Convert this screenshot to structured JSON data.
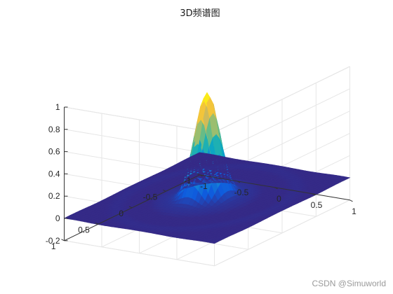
{
  "chart_data": {
    "type": "surface",
    "title": "3D频谱图",
    "xlabel": "",
    "ylabel": "",
    "zlabel": "",
    "xlim": [
      -1,
      1
    ],
    "ylim": [
      -1,
      1
    ],
    "zlim": [
      -0.2,
      1
    ],
    "x_ticks": [
      "-1",
      "-0.5",
      "0",
      "0.5",
      "1"
    ],
    "y_ticks": [
      "-1",
      "-0.5",
      "0",
      "0.5",
      "1"
    ],
    "z_ticks": [
      "-0.2",
      "0",
      "0.2",
      "0.4",
      "0.6",
      "0.8",
      "1"
    ],
    "x_tick_values": [
      -1,
      -0.5,
      0,
      0.5,
      1
    ],
    "y_tick_values": [
      -1,
      -0.5,
      0,
      0.5,
      1
    ],
    "z_tick_values": [
      -0.2,
      0,
      0.2,
      0.4,
      0.6,
      0.8,
      1
    ],
    "peak": {
      "x": 0,
      "y": 0,
      "z": 0.93
    },
    "grid": true,
    "colormap": "parula",
    "colormap_colors": [
      "#352a87",
      "#0f5cdd",
      "#1481d6",
      "#06a4ca",
      "#2eb7a4",
      "#87bf77",
      "#d1bb59",
      "#fec832",
      "#f9fb0e"
    ]
  },
  "watermark": "CSDN @Simuworld"
}
